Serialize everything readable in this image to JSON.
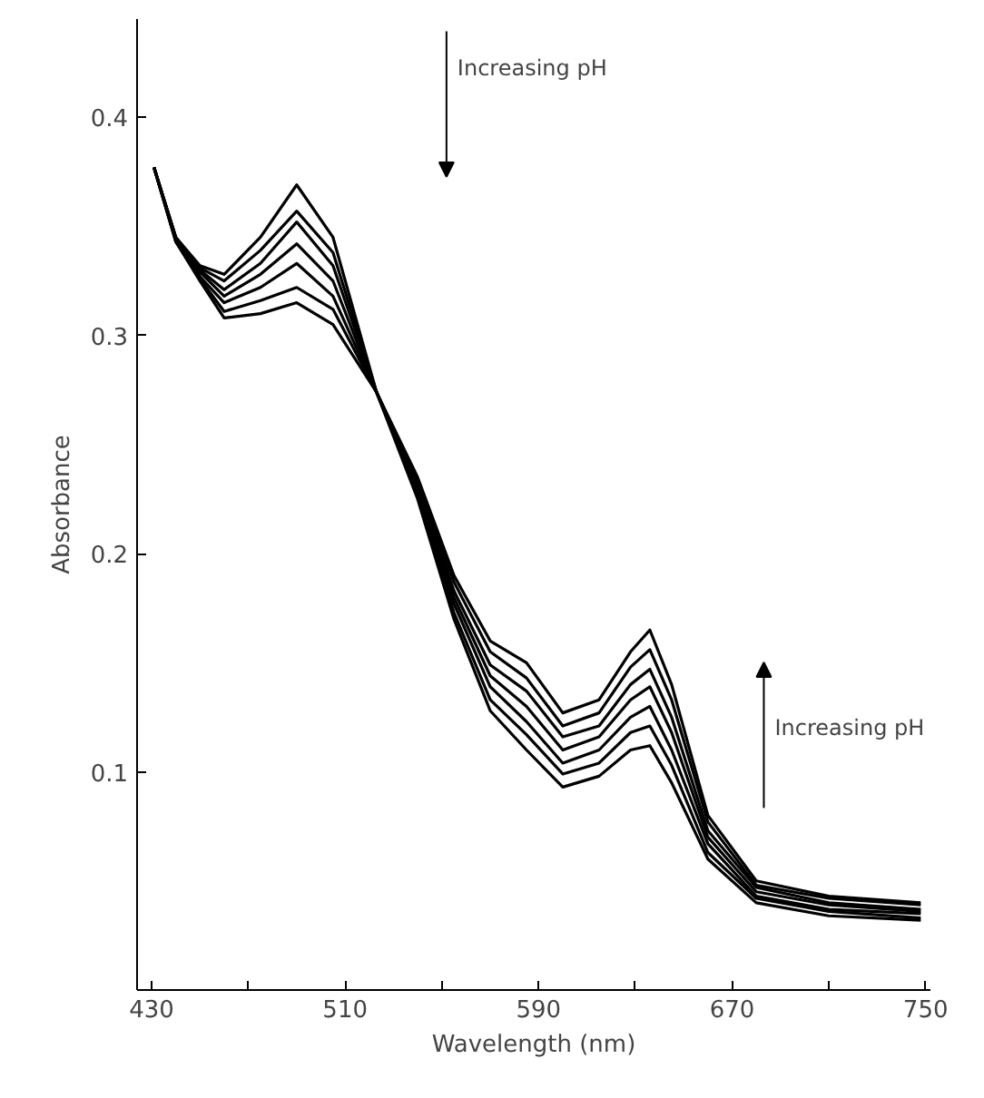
{
  "chart_data": {
    "type": "line",
    "xlabel": "Wavelength (nm)",
    "ylabel": "Absorbance",
    "annotations": [
      "Increasing pH",
      "Increasing pH"
    ],
    "x": [
      431,
      440,
      450,
      460,
      475,
      490,
      505,
      523,
      540,
      555,
      570,
      585,
      600,
      615,
      628,
      636,
      645,
      660,
      680,
      710,
      748
    ],
    "series": [
      {
        "color": "#000000",
        "values": [
          0.377,
          0.345,
          0.332,
          0.328,
          0.345,
          0.369,
          0.345,
          0.274,
          0.225,
          0.17,
          0.128,
          0.11,
          0.093,
          0.098,
          0.11,
          0.112,
          0.095,
          0.06,
          0.04,
          0.034,
          0.032
        ]
      },
      {
        "color": "#000000",
        "values": [
          0.377,
          0.345,
          0.331,
          0.325,
          0.339,
          0.357,
          0.338,
          0.274,
          0.227,
          0.173,
          0.133,
          0.117,
          0.099,
          0.104,
          0.118,
          0.121,
          0.103,
          0.063,
          0.042,
          0.036,
          0.033
        ]
      },
      {
        "color": "#000000",
        "values": [
          0.377,
          0.345,
          0.33,
          0.321,
          0.333,
          0.352,
          0.332,
          0.274,
          0.228,
          0.177,
          0.139,
          0.123,
          0.104,
          0.11,
          0.125,
          0.13,
          0.11,
          0.067,
          0.043,
          0.037,
          0.035
        ]
      },
      {
        "color": "#000000",
        "values": [
          0.377,
          0.344,
          0.329,
          0.318,
          0.328,
          0.342,
          0.325,
          0.274,
          0.23,
          0.18,
          0.144,
          0.13,
          0.11,
          0.116,
          0.133,
          0.139,
          0.118,
          0.07,
          0.045,
          0.039,
          0.036
        ]
      },
      {
        "color": "#000000",
        "values": [
          0.377,
          0.344,
          0.327,
          0.315,
          0.322,
          0.333,
          0.318,
          0.274,
          0.232,
          0.183,
          0.149,
          0.137,
          0.116,
          0.121,
          0.14,
          0.147,
          0.125,
          0.073,
          0.047,
          0.04,
          0.037
        ]
      },
      {
        "color": "#000000",
        "values": [
          0.377,
          0.343,
          0.326,
          0.311,
          0.316,
          0.322,
          0.312,
          0.274,
          0.233,
          0.187,
          0.155,
          0.143,
          0.121,
          0.127,
          0.148,
          0.156,
          0.133,
          0.077,
          0.048,
          0.042,
          0.039
        ]
      },
      {
        "color": "#000000",
        "values": [
          0.377,
          0.343,
          0.325,
          0.308,
          0.31,
          0.315,
          0.305,
          0.274,
          0.235,
          0.19,
          0.16,
          0.15,
          0.127,
          0.133,
          0.155,
          0.165,
          0.14,
          0.08,
          0.05,
          0.043,
          0.04
        ]
      }
    ],
    "xlim": [
      424,
      752
    ],
    "ylim": [
      0,
      0.445
    ],
    "xticks": [
      430,
      {
        "value": 470,
        "label": null
      },
      510,
      {
        "value": 550,
        "label": null
      },
      590,
      {
        "value": 630,
        "label": null
      },
      670,
      {
        "value": 710,
        "label": null
      },
      750
    ],
    "yticks": [
      0.1,
      0.2,
      0.3,
      0.4
    ],
    "line_style": "solid"
  }
}
